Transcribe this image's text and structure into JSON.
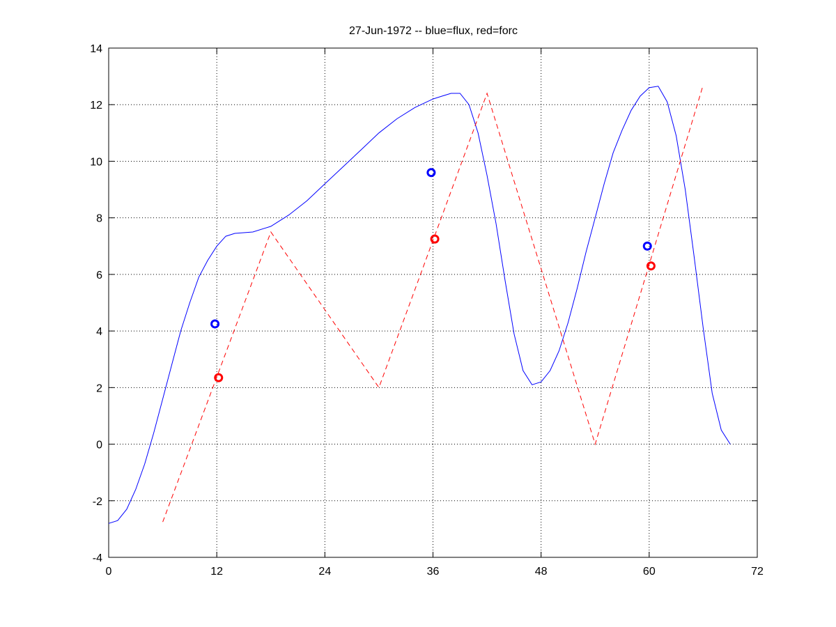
{
  "chart_data": {
    "type": "line",
    "title": "27-Jun-1972 -- blue=flux, red=forc",
    "xlim": [
      0,
      72
    ],
    "ylim": [
      -4,
      14
    ],
    "xticks": [
      0,
      12,
      24,
      36,
      48,
      60,
      72
    ],
    "yticks": [
      -4,
      -2,
      0,
      2,
      4,
      6,
      8,
      10,
      12,
      14
    ],
    "grid": true,
    "legend": "none",
    "series": [
      {
        "style": "solid",
        "color": "#0000ff",
        "points": [
          [
            0,
            -2.8
          ],
          [
            1,
            -2.7
          ],
          [
            2,
            -2.3
          ],
          [
            3,
            -1.6
          ],
          [
            4,
            -0.7
          ],
          [
            5,
            0.4
          ],
          [
            6,
            1.6
          ],
          [
            7,
            2.8
          ],
          [
            8,
            4.0
          ],
          [
            9,
            5.0
          ],
          [
            10,
            5.9
          ],
          [
            11,
            6.5
          ],
          [
            12,
            7.0
          ],
          [
            13,
            7.35
          ],
          [
            14,
            7.45
          ],
          [
            16,
            7.5
          ],
          [
            18,
            7.7
          ],
          [
            20,
            8.1
          ],
          [
            22,
            8.6
          ],
          [
            24,
            9.2
          ],
          [
            26,
            9.8
          ],
          [
            28,
            10.4
          ],
          [
            30,
            11.0
          ],
          [
            32,
            11.5
          ],
          [
            34,
            11.9
          ],
          [
            36,
            12.2
          ],
          [
            37,
            12.3
          ],
          [
            38,
            12.4
          ],
          [
            39,
            12.4
          ],
          [
            40,
            12.0
          ],
          [
            41,
            11.0
          ],
          [
            42,
            9.5
          ],
          [
            43,
            7.8
          ],
          [
            44,
            5.8
          ],
          [
            45,
            3.9
          ],
          [
            46,
            2.6
          ],
          [
            47,
            2.1
          ],
          [
            48,
            2.2
          ],
          [
            49,
            2.6
          ],
          [
            50,
            3.3
          ],
          [
            51,
            4.3
          ],
          [
            52,
            5.5
          ],
          [
            53,
            6.8
          ],
          [
            54,
            8.0
          ],
          [
            55,
            9.2
          ],
          [
            56,
            10.3
          ],
          [
            57,
            11.1
          ],
          [
            58,
            11.8
          ],
          [
            59,
            12.3
          ],
          [
            60,
            12.6
          ],
          [
            61,
            12.65
          ],
          [
            62,
            12.1
          ],
          [
            63,
            10.9
          ],
          [
            64,
            9.0
          ],
          [
            65,
            6.6
          ],
          [
            66,
            4.1
          ],
          [
            67,
            1.8
          ],
          [
            68,
            0.5
          ],
          [
            69,
            0.0
          ]
        ]
      },
      {
        "style": "dashed",
        "color": "#ff0000",
        "points": [
          [
            6,
            -2.75
          ],
          [
            18,
            7.5
          ],
          [
            30,
            2.0
          ],
          [
            42,
            12.4
          ],
          [
            54,
            0.0
          ],
          [
            66,
            12.7
          ]
        ]
      }
    ],
    "markers": [
      {
        "color": "#0000ff",
        "x": 11.8,
        "y": 4.25
      },
      {
        "color": "#ff0000",
        "x": 12.2,
        "y": 2.35
      },
      {
        "color": "#0000ff",
        "x": 35.8,
        "y": 9.6
      },
      {
        "color": "#ff0000",
        "x": 36.2,
        "y": 7.25
      },
      {
        "color": "#0000ff",
        "x": 59.8,
        "y": 7.0
      },
      {
        "color": "#ff0000",
        "x": 60.2,
        "y": 6.3
      }
    ]
  }
}
